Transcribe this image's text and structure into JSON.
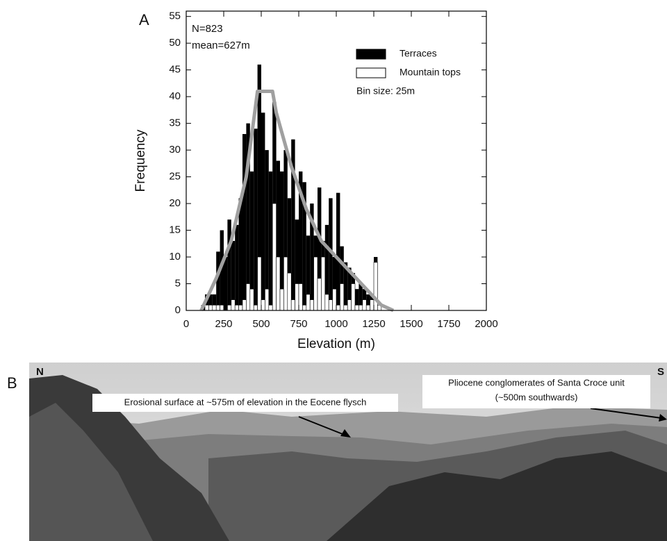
{
  "panels": {
    "a": "A",
    "b": "B"
  },
  "chart_data": {
    "type": "histogram",
    "ylabel": "Frequency",
    "xlabel": "Elevation (m)",
    "annotations": [
      "N=823",
      "mean=627m"
    ],
    "note": "Bin size: 25m",
    "xlim": [
      0,
      2000
    ],
    "xticks": [
      0,
      250,
      500,
      750,
      1000,
      1250,
      1500,
      1750,
      2000
    ],
    "ylim": [
      0,
      56
    ],
    "yticks": [
      0,
      5,
      10,
      15,
      20,
      25,
      30,
      35,
      40,
      45,
      50,
      55
    ],
    "bins": [
      100,
      125,
      150,
      175,
      200,
      225,
      250,
      275,
      300,
      325,
      350,
      375,
      400,
      425,
      450,
      475,
      500,
      525,
      550,
      575,
      600,
      625,
      650,
      675,
      700,
      725,
      750,
      775,
      800,
      825,
      850,
      875,
      900,
      925,
      950,
      975,
      1000,
      1025,
      1050,
      1075,
      1100,
      1125,
      1150,
      1175,
      1200,
      1225,
      1250,
      1275,
      1300
    ],
    "series": [
      {
        "name": "Terraces",
        "color": "#000000",
        "values": [
          1,
          3,
          3,
          3,
          11,
          15,
          10,
          17,
          13,
          16,
          21,
          33,
          35,
          26,
          34,
          46,
          37,
          30,
          26,
          39,
          28,
          26,
          30,
          21,
          32,
          17,
          26,
          24,
          14,
          20,
          14,
          23,
          13,
          16,
          21,
          10,
          22,
          12,
          9,
          8,
          7,
          4,
          5,
          4,
          3,
          3,
          10,
          1
        ]
      },
      {
        "name": "Mountain tops",
        "color": "#ffffff",
        "values": [
          0,
          1,
          1,
          1,
          1,
          1,
          0,
          1,
          2,
          1,
          1,
          2,
          5,
          4,
          1,
          10,
          2,
          4,
          1,
          20,
          10,
          4,
          10,
          7,
          2,
          5,
          5,
          1,
          3,
          2,
          10,
          6,
          10,
          3,
          2,
          4,
          1,
          5,
          1,
          2,
          5,
          1,
          1,
          2,
          1,
          2,
          9,
          1
        ]
      }
    ],
    "curve": {
      "color": "#a0a0a0",
      "x": [
        100,
        200,
        300,
        400,
        475,
        500,
        575,
        600,
        700,
        800,
        900,
        1000,
        1100,
        1200,
        1300,
        1380
      ],
      "values": [
        0,
        6,
        13,
        25,
        41,
        41,
        41,
        37,
        27,
        19,
        13,
        10,
        7,
        4,
        1,
        0
      ]
    }
  },
  "photo": {
    "north": "N",
    "south": "S",
    "label_left": "Erosional surface at ~575m of elevation in the Eocene flysch",
    "label_right": [
      "Pliocene conglomerates of Santa Croce unit",
      "(~500m southwards)"
    ]
  }
}
